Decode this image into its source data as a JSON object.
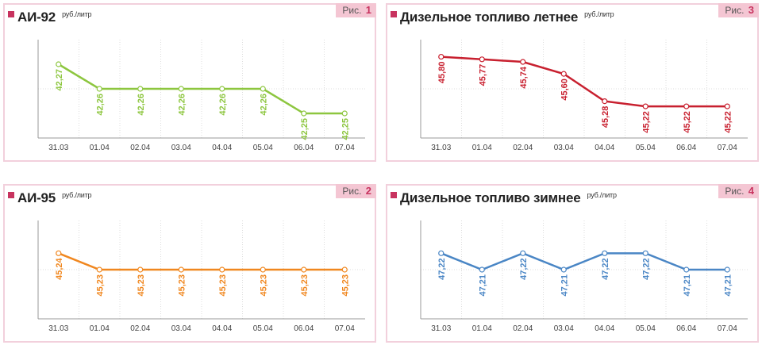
{
  "chart_data": [
    {
      "type": "line",
      "title": "АИ-92",
      "unit": "руб./литр",
      "figure_label": "Рис.",
      "figure_number": "1",
      "color": "#8dc63f",
      "categories": [
        "31.03",
        "01.04",
        "02.04",
        "03.04",
        "04.04",
        "05.04",
        "06.04",
        "07.04"
      ],
      "values": [
        42.27,
        42.26,
        42.26,
        42.26,
        42.26,
        42.26,
        42.25,
        42.25
      ],
      "labels": [
        "42,27",
        "42,26",
        "42,26",
        "42,26",
        "42,26",
        "42,26",
        "42,25",
        "42,25"
      ],
      "ylim": [
        42.24,
        42.28
      ]
    },
    {
      "type": "line",
      "title": "АИ-95",
      "unit": "руб./литр",
      "figure_label": "Рис.",
      "figure_number": "2",
      "color": "#f0871f",
      "categories": [
        "31.03",
        "01.04",
        "02.04",
        "03.04",
        "04.04",
        "05.04",
        "06.04",
        "07.04"
      ],
      "values": [
        45.24,
        45.23,
        45.23,
        45.23,
        45.23,
        45.23,
        45.23,
        45.23
      ],
      "labels": [
        "45,24",
        "45,23",
        "45,23",
        "45,23",
        "45,23",
        "45,23",
        "45,23",
        "45,23"
      ],
      "ylim": [
        45.2,
        45.26
      ]
    },
    {
      "type": "line",
      "title": "Дизельное топливо летнее",
      "unit": "руб./литр",
      "figure_label": "Рис.",
      "figure_number": "3",
      "color": "#c8202f",
      "categories": [
        "31.03",
        "01.04",
        "02.04",
        "03.04",
        "04.04",
        "05.04",
        "06.04",
        "07.04"
      ],
      "values": [
        45.8,
        45.77,
        45.74,
        45.6,
        45.28,
        45.22,
        45.22,
        45.22
      ],
      "labels": [
        "45,80",
        "45,77",
        "45,74",
        "45,60",
        "45,28",
        "45,22",
        "45,22",
        "45,22"
      ],
      "ylim": [
        44.85,
        46.0
      ]
    },
    {
      "type": "line",
      "title": "Дизельное топливо зимнее",
      "unit": "руб./литр",
      "figure_label": "Рис.",
      "figure_number": "4",
      "color": "#4a86c5",
      "categories": [
        "31.03",
        "01.04",
        "02.04",
        "03.04",
        "04.04",
        "05.04",
        "06.04",
        "07.04"
      ],
      "values": [
        47.22,
        47.21,
        47.22,
        47.21,
        47.22,
        47.22,
        47.21,
        47.21
      ],
      "labels": [
        "47,22",
        "47,21",
        "47,22",
        "47,21",
        "47,22",
        "47,22",
        "47,21",
        "47,21"
      ],
      "ylim": [
        47.18,
        47.24
      ]
    }
  ]
}
